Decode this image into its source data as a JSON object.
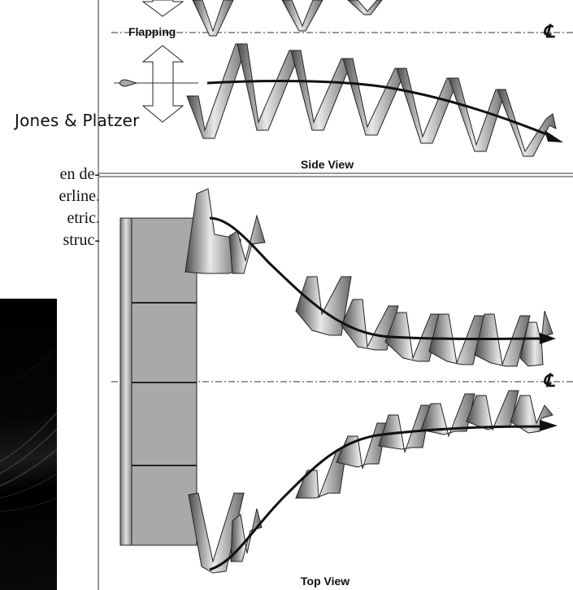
{
  "header": {
    "author": "Jones & Platzer"
  },
  "body_text": {
    "lines": [
      "en de-",
      "erline.",
      "etric.",
      "struc-"
    ]
  },
  "figure": {
    "side_view": {
      "label": "Side View",
      "flapping_label": "Flapping",
      "centerline_symbol": "℄"
    },
    "top_view": {
      "label": "Top View",
      "centerline_symbol": "℄"
    }
  }
}
